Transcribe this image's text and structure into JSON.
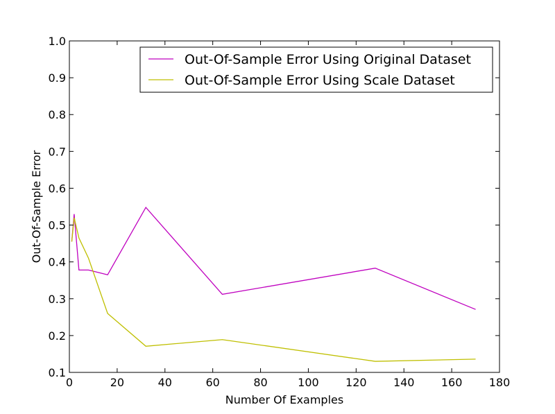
{
  "chart_data": {
    "type": "line",
    "title": "",
    "xlabel": "Number Of Examples",
    "ylabel": "Out-Of-Sample Error",
    "xlim": [
      0,
      180
    ],
    "ylim": [
      0.1,
      1.0
    ],
    "xticks": [
      0,
      20,
      40,
      60,
      80,
      100,
      120,
      140,
      160,
      180
    ],
    "yticks": [
      0.1,
      0.2,
      0.3,
      0.4,
      0.5,
      0.6,
      0.7,
      0.8,
      0.9,
      1.0
    ],
    "xtick_labels": [
      "0",
      "20",
      "40",
      "60",
      "80",
      "100",
      "120",
      "140",
      "160",
      "180"
    ],
    "ytick_labels": [
      "0.1",
      "0.2",
      "0.3",
      "0.4",
      "0.5",
      "0.6",
      "0.7",
      "0.8",
      "0.9",
      "1.0"
    ],
    "grid": false,
    "legend_position": "top-right",
    "series": [
      {
        "name": "Out-Of-Sample Error Using Original Dataset",
        "color": "#bf00bf",
        "x": [
          1,
          2,
          4,
          8,
          16,
          32,
          64,
          128,
          170
        ],
        "y": [
          0.455,
          0.53,
          0.378,
          0.378,
          0.365,
          0.548,
          0.312,
          0.383,
          0.271
        ]
      },
      {
        "name": "Out-Of-Sample Error Using Scale Dataset",
        "color": "#bfbf00",
        "x": [
          1,
          2,
          4,
          8,
          16,
          32,
          64,
          128,
          170
        ],
        "y": [
          0.455,
          0.52,
          0.465,
          0.41,
          0.26,
          0.171,
          0.189,
          0.13,
          0.136
        ]
      }
    ]
  }
}
